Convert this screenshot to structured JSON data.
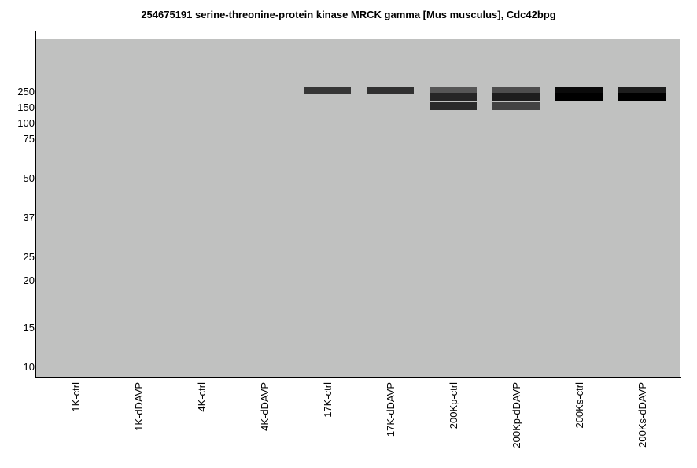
{
  "chart_data": {
    "type": "blot",
    "title": "254675191 serine-threonine-protein kinase MRCK gamma [Mus musculus], Cdc42bpg",
    "y_ticks": [
      "250",
      "150",
      "100",
      "75",
      "50",
      "37",
      "25",
      "20",
      "15",
      "10"
    ],
    "lanes": [
      "1K-ctrl",
      "1K-dDAVP",
      "4K-ctrl",
      "4K-dDAVP",
      "17K-ctrl",
      "17K-dDAVP",
      "200Kp-ctrl",
      "200Kp-dDAVP",
      "200Ks-ctrl",
      "200Ks-dDAVP"
    ],
    "bands": [
      {
        "lane": "17K-ctrl",
        "marker": "250",
        "intensity": 0.72
      },
      {
        "lane": "17K-dDAVP",
        "marker": "250",
        "intensity": 0.75
      },
      {
        "lane": "200Kp-ctrl",
        "marker": "250",
        "intensity": 0.55
      },
      {
        "lane": "200Kp-ctrl",
        "marker": "180",
        "intensity": 0.8
      },
      {
        "lane": "200Kp-ctrl",
        "marker": "150",
        "intensity": 0.78
      },
      {
        "lane": "200Kp-dDAVP",
        "marker": "250",
        "intensity": 0.6
      },
      {
        "lane": "200Kp-dDAVP",
        "marker": "180",
        "intensity": 0.85
      },
      {
        "lane": "200Kp-dDAVP",
        "marker": "150",
        "intensity": 0.65
      },
      {
        "lane": "200Ks-ctrl",
        "marker": "250",
        "intensity": 0.95
      },
      {
        "lane": "200Ks-ctrl",
        "marker": "180",
        "intensity": 1.0
      },
      {
        "lane": "200Ks-dDAVP",
        "marker": "250",
        "intensity": 0.85
      },
      {
        "lane": "200Ks-dDAVP",
        "marker": "180",
        "intensity": 1.0
      }
    ],
    "background_color": "#c0c1c0"
  }
}
